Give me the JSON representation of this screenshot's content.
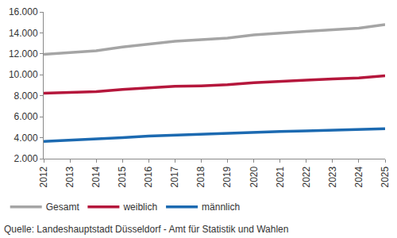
{
  "chart_data": {
    "type": "line",
    "categories": [
      "2012",
      "2013",
      "2014",
      "2015",
      "2016",
      "2017",
      "2018",
      "2019",
      "2020",
      "2021",
      "2022",
      "2023",
      "2024",
      "2025"
    ],
    "series": [
      {
        "name": "Gesamt",
        "color": "#a5a5a5",
        "values": [
          11950,
          12150,
          12300,
          12650,
          12950,
          13200,
          13350,
          13500,
          13800,
          14000,
          14150,
          14300,
          14450,
          14800
        ]
      },
      {
        "name": "weiblich",
        "color": "#b5173c",
        "values": [
          8250,
          8350,
          8400,
          8600,
          8750,
          8900,
          8950,
          9050,
          9250,
          9400,
          9500,
          9600,
          9700,
          9900
        ]
      },
      {
        "name": "männlich",
        "color": "#1c6ab1",
        "values": [
          3650,
          3750,
          3850,
          4000,
          4150,
          4250,
          4350,
          4400,
          4500,
          4600,
          4650,
          4700,
          4750,
          4850
        ]
      }
    ],
    "ylim": [
      2000,
      16000
    ],
    "yticks": [
      {
        "value": 2000,
        "label": "2.000"
      },
      {
        "value": 4000,
        "label": "4.000"
      },
      {
        "value": 6000,
        "label": "6.000"
      },
      {
        "value": 8000,
        "label": "8.000"
      },
      {
        "value": 10000,
        "label": "10.000"
      },
      {
        "value": 12000,
        "label": "12.000"
      },
      {
        "value": 14000,
        "label": "14.000"
      },
      {
        "value": 16000,
        "label": "16.000"
      }
    ],
    "grid": false,
    "legend": "bottom",
    "annotations": [
      "Quelle: Landeshauptstadt Düsseldorf - Amt für Statistik und Wahlen"
    ]
  }
}
